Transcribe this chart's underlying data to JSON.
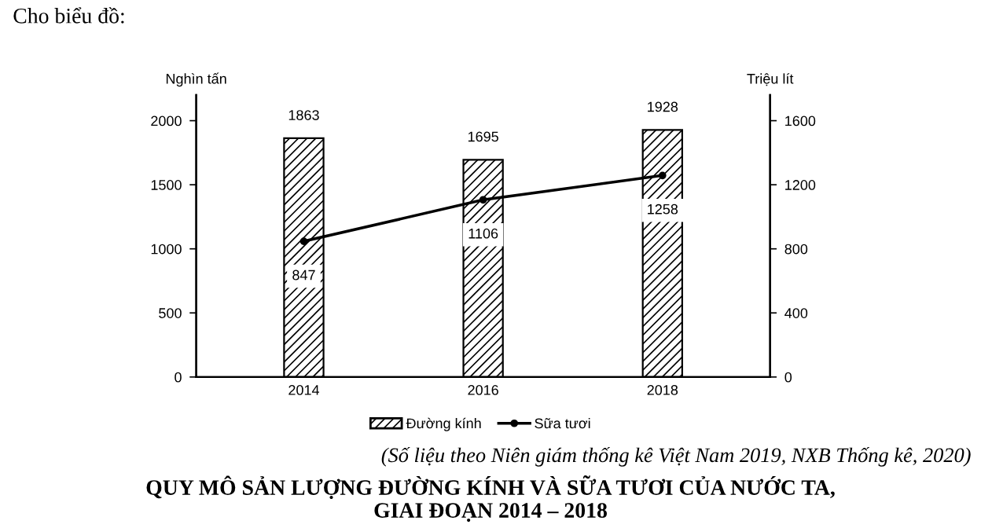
{
  "chart_data": {
    "type": "bar",
    "title": "QUY MÔ SẢN LƯỢNG ĐƯỜNG KÍNH VÀ SỮA TƯƠI CỦA NƯỚC TA,\nGIAI ĐOẠN 2014 – 2018",
    "ylabel": "Nghìn tấn",
    "y2label": "Triệu lít",
    "categories": [
      "2014",
      "2016",
      "2018"
    ],
    "series": [
      {
        "name": "Đường kính",
        "color": "#000000",
        "values": [
          1863,
          1695,
          1928
        ]
      },
      {
        "name": "Sữa tươi",
        "type": "line",
        "axis": "y2",
        "color": "#000000",
        "marker": "circle",
        "values": [
          847,
          1106,
          1258
        ]
      }
    ],
    "ylim": [
      0,
      2200
    ],
    "yticks": [
      0,
      500,
      1000,
      1500,
      2000
    ],
    "y2lim": [
      0,
      1760
    ],
    "y2ticks": [
      0,
      400,
      800,
      1200,
      1600
    ],
    "data_labels": true,
    "legend": "bottom",
    "grid": false,
    "annotations": [
      "Cho biểu đồ:",
      "(Số liệu theo Niên giám thống kê Việt Nam 2019, NXB Thống kê, 2020)"
    ]
  }
}
